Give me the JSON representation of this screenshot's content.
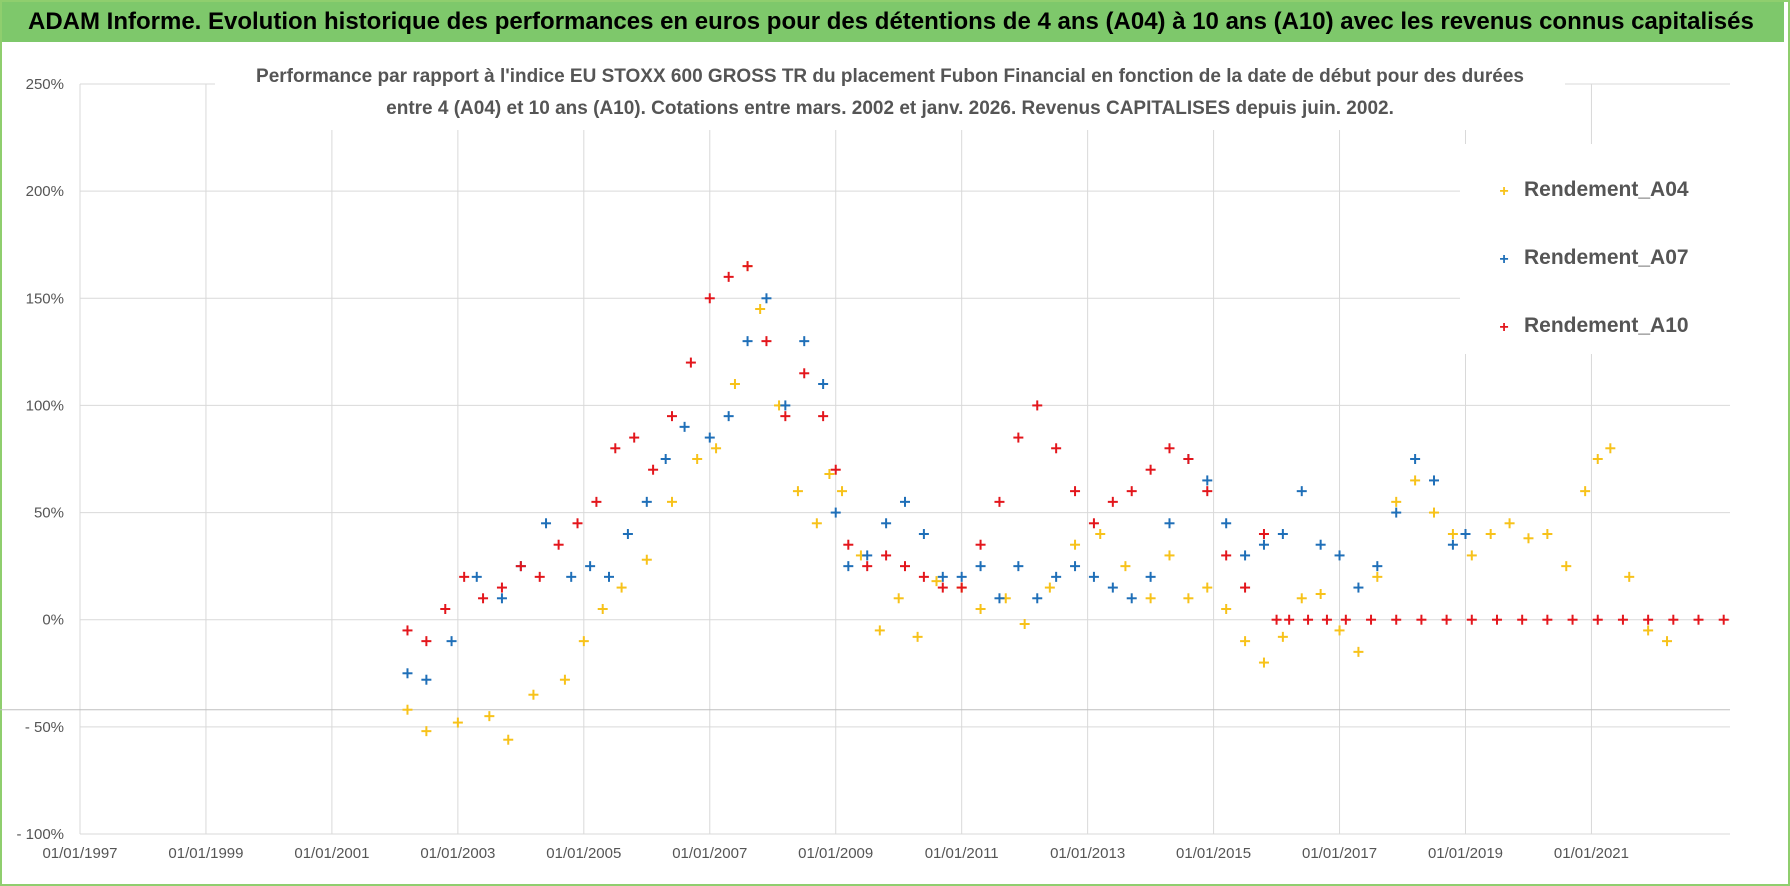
{
  "banner": {
    "title": "ADAM Informe. Evolution historique des performances en euros pour des détentions de 4 ans (A04) à 10 ans (A10) avec les revenus connus capitalisés"
  },
  "colors": {
    "banner_bg": "#7ec86b",
    "A04": "#f7c21a",
    "A07": "#1f6fb8",
    "A10": "#e3161c",
    "grid": "#d9d9d9"
  },
  "chart_data": {
    "type": "scatter",
    "title_line1": "Performance par rapport à l'indice EU STOXX 600 GROSS TR  du placement Fubon Financial  en fonction de la date de début pour des durées",
    "title_line2": "entre 4 (A04) et 10 ans (A10). Cotations entre mars. 2002 et janv. 2026. Revenus CAPITALISES depuis juin. 2002.",
    "x_range": [
      1997.0,
      2023.2
    ],
    "y_range": [
      -100,
      250
    ],
    "y_ticks": [
      250,
      200,
      150,
      100,
      50,
      0,
      -50,
      -100
    ],
    "y_tick_labels": [
      "250%",
      "200%",
      "150%",
      "100%",
      "50%",
      "0%",
      "- 50%",
      "- 100%"
    ],
    "x_ticks": [
      1997,
      1999,
      2001,
      2003,
      2005,
      2007,
      2009,
      2011,
      2013,
      2015,
      2017,
      2019,
      2021
    ],
    "x_tick_labels": [
      "01/01/1997",
      "01/01/1999",
      "01/01/2001",
      "01/01/2003",
      "01/01/2005",
      "01/01/2007",
      "01/01/2009",
      "01/01/2011",
      "01/01/2013",
      "01/01/2015",
      "01/01/2017",
      "01/01/2019",
      "01/01/2021"
    ],
    "legend": [
      "Rendement_A04",
      "Rendement_A07",
      "Rendement_A10"
    ],
    "legend_position": "top-right",
    "series": [
      {
        "name": "Rendement_A04",
        "x": [
          2002.2,
          2002.5,
          2003.0,
          2003.5,
          2003.8,
          2004.2,
          2004.7,
          2005.0,
          2005.3,
          2005.6,
          2006.0,
          2006.4,
          2006.8,
          2007.1,
          2007.4,
          2007.6,
          2007.8,
          2008.1,
          2008.4,
          2008.7,
          2008.9,
          2009.1,
          2009.4,
          2009.7,
          2010.0,
          2010.3,
          2010.6,
          2011.0,
          2011.3,
          2011.7,
          2012.0,
          2012.4,
          2012.8,
          2013.2,
          2013.6,
          2014.0,
          2014.3,
          2014.6,
          2014.9,
          2015.2,
          2015.5,
          2015.8,
          2016.1,
          2016.4,
          2016.7,
          2017.0,
          2017.3,
          2017.6,
          2017.9,
          2018.2,
          2018.5,
          2018.8,
          2019.1,
          2019.4,
          2019.7,
          2020.0,
          2020.3,
          2020.6,
          2020.9,
          2021.1,
          2021.3,
          2021.6,
          2021.9,
          2022.2
        ],
        "y": [
          -42,
          -52,
          -48,
          -45,
          -56,
          -35,
          -28,
          -10,
          5,
          15,
          28,
          55,
          75,
          80,
          110,
          165,
          145,
          100,
          60,
          45,
          68,
          60,
          30,
          -5,
          10,
          -8,
          18,
          15,
          5,
          10,
          -2,
          15,
          35,
          40,
          25,
          10,
          30,
          10,
          15,
          5,
          -10,
          -20,
          -8,
          10,
          12,
          -5,
          -15,
          20,
          55,
          65,
          50,
          40,
          30,
          40,
          45,
          38,
          40,
          25,
          60,
          75,
          80,
          20,
          -5,
          -10
        ]
      },
      {
        "name": "Rendement_A07",
        "x": [
          2002.2,
          2002.5,
          2002.9,
          2003.3,
          2003.7,
          2004.0,
          2004.4,
          2004.8,
          2005.1,
          2005.4,
          2005.7,
          2006.0,
          2006.3,
          2006.6,
          2007.0,
          2007.3,
          2007.6,
          2007.9,
          2008.2,
          2008.5,
          2008.8,
          2009.0,
          2009.2,
          2009.5,
          2009.8,
          2010.1,
          2010.4,
          2010.7,
          2011.0,
          2011.3,
          2011.6,
          2011.9,
          2012.2,
          2012.5,
          2012.8,
          2013.1,
          2013.4,
          2013.7,
          2014.0,
          2014.3,
          2014.6,
          2014.9,
          2015.2,
          2015.5,
          2015.8,
          2016.1,
          2016.4,
          2016.7,
          2017.0,
          2017.3,
          2017.6,
          2017.9,
          2018.2,
          2018.5,
          2018.8,
          2019.0
        ],
        "y": [
          -25,
          -28,
          -10,
          20,
          10,
          25,
          45,
          20,
          25,
          20,
          40,
          55,
          75,
          90,
          85,
          95,
          130,
          150,
          100,
          130,
          110,
          50,
          25,
          30,
          45,
          55,
          40,
          20,
          20,
          25,
          10,
          25,
          10,
          20,
          25,
          20,
          15,
          10,
          20,
          45,
          75,
          65,
          45,
          30,
          35,
          40,
          60,
          35,
          30,
          15,
          25,
          50,
          75,
          65,
          35,
          40
        ]
      },
      {
        "name": "Rendement_A10",
        "x": [
          2002.2,
          2002.5,
          2002.8,
          2003.1,
          2003.4,
          2003.7,
          2004.0,
          2004.3,
          2004.6,
          2004.9,
          2005.2,
          2005.5,
          2005.8,
          2006.1,
          2006.4,
          2006.7,
          2007.0,
          2007.3,
          2007.6,
          2007.9,
          2008.2,
          2008.5,
          2008.8,
          2009.0,
          2009.2,
          2009.5,
          2009.8,
          2010.1,
          2010.4,
          2010.7,
          2011.0,
          2011.3,
          2011.6,
          2011.9,
          2012.2,
          2012.5,
          2012.8,
          2013.1,
          2013.4,
          2013.7,
          2014.0,
          2014.3,
          2014.6,
          2014.9,
          2015.2,
          2015.5,
          2015.8,
          2016.0,
          2016.2,
          2016.5,
          2016.8,
          2017.1,
          2017.5,
          2017.9,
          2018.3,
          2018.7,
          2019.1,
          2019.5,
          2019.9,
          2020.3,
          2020.7,
          2021.1,
          2021.5,
          2021.9,
          2022.3,
          2022.7,
          2023.1
        ],
        "y": [
          -5,
          -10,
          5,
          20,
          10,
          15,
          25,
          20,
          35,
          45,
          55,
          80,
          85,
          70,
          95,
          120,
          150,
          160,
          165,
          130,
          95,
          115,
          95,
          70,
          35,
          25,
          30,
          25,
          20,
          15,
          15,
          35,
          55,
          85,
          100,
          80,
          60,
          45,
          55,
          60,
          70,
          80,
          75,
          60,
          30,
          15,
          40,
          0,
          0,
          0,
          0,
          0,
          0,
          0,
          0,
          0,
          0,
          0,
          0,
          0,
          0,
          0,
          0,
          0,
          0,
          0,
          0
        ]
      }
    ]
  }
}
